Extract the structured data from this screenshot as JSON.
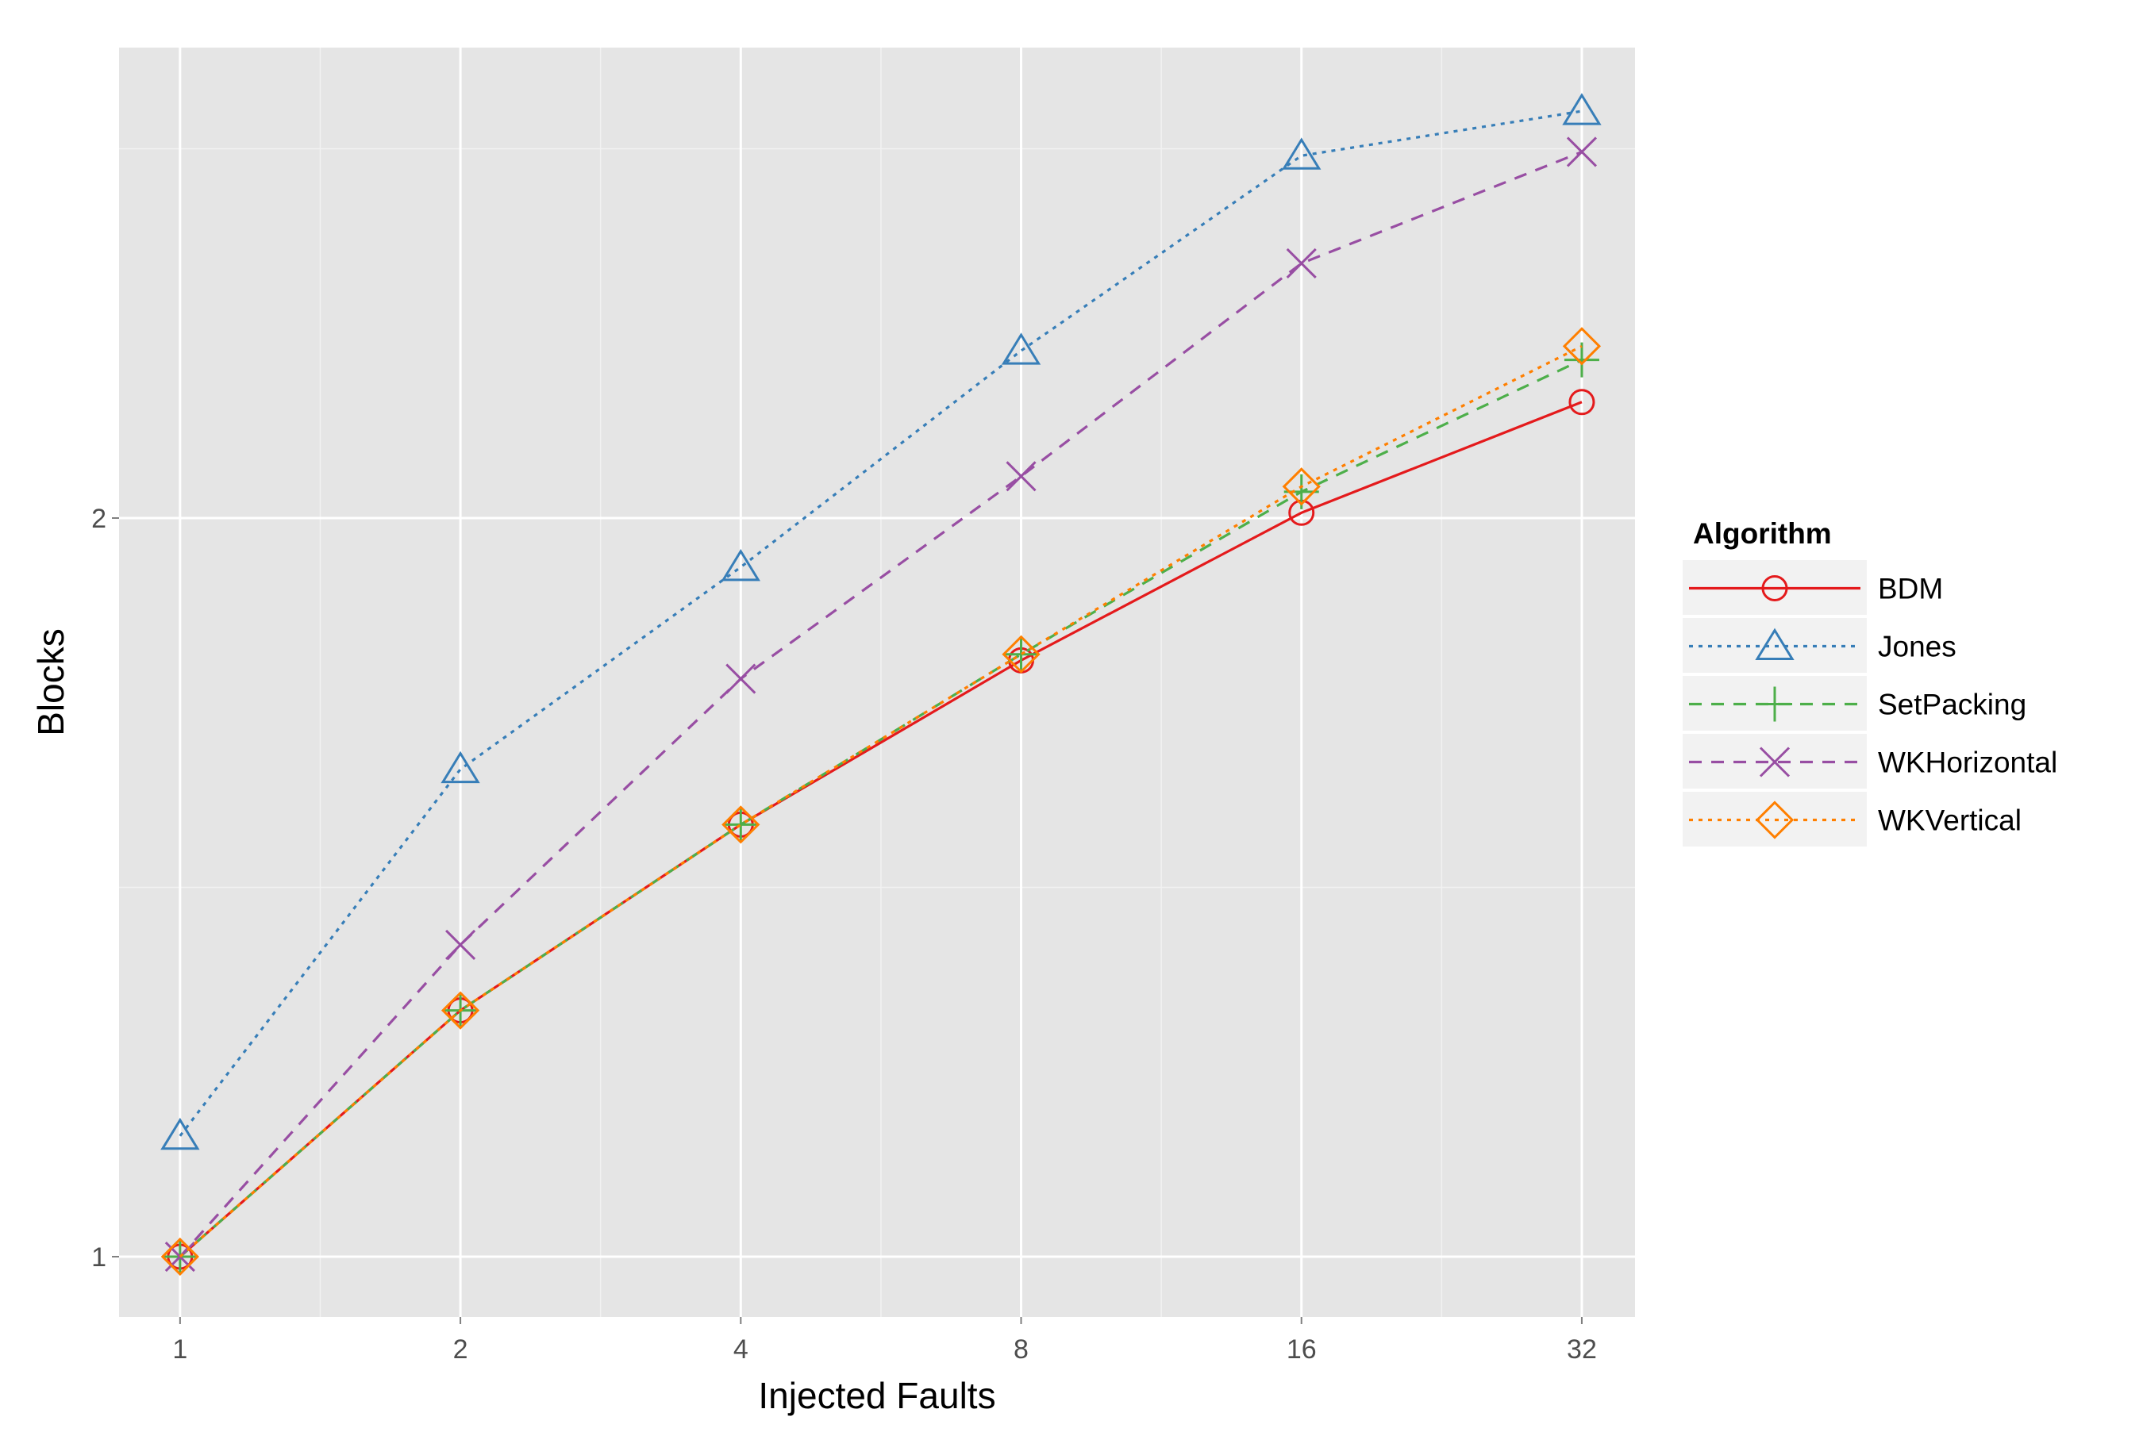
{
  "chart_data": {
    "type": "line",
    "title": "",
    "xlabel": "Injected Faults",
    "ylabel": "Blocks",
    "x_scale": "log2",
    "y_scale": "log2",
    "x": [
      1,
      2,
      4,
      8,
      16,
      32
    ],
    "x_tick_labels": [
      "1",
      "2",
      "4",
      "8",
      "16",
      "32"
    ],
    "y_ticks": [
      1,
      2
    ],
    "y_tick_labels": [
      "1",
      "2"
    ],
    "xlim": [
      0.86,
      36.5
    ],
    "ylim": [
      0.945,
      3.11
    ],
    "grid": true,
    "legend": {
      "title": "Algorithm",
      "position": "right"
    },
    "series": [
      {
        "name": "BDM",
        "color": "#e41a1c",
        "linestyle": "solid",
        "marker": "circle",
        "values": [
          1.0,
          1.26,
          1.5,
          1.75,
          2.01,
          2.23
        ]
      },
      {
        "name": "Jones",
        "color": "#377eb8",
        "linestyle": "dotted",
        "marker": "triangle",
        "values": [
          1.12,
          1.58,
          1.91,
          2.34,
          2.81,
          2.93
        ]
      },
      {
        "name": "SetPacking",
        "color": "#4daf4a",
        "linestyle": "dashed",
        "marker": "plus",
        "values": [
          1.0,
          1.26,
          1.5,
          1.76,
          2.05,
          2.32
        ]
      },
      {
        "name": "WKHorizontal",
        "color": "#984ea3",
        "linestyle": "dashed",
        "marker": "cross",
        "values": [
          1.0,
          1.34,
          1.72,
          2.08,
          2.54,
          2.82
        ]
      },
      {
        "name": "WKVertical",
        "color": "#ff7f00",
        "linestyle": "dotted",
        "marker": "diamond",
        "values": [
          1.0,
          1.26,
          1.5,
          1.76,
          2.06,
          2.35
        ]
      }
    ]
  }
}
